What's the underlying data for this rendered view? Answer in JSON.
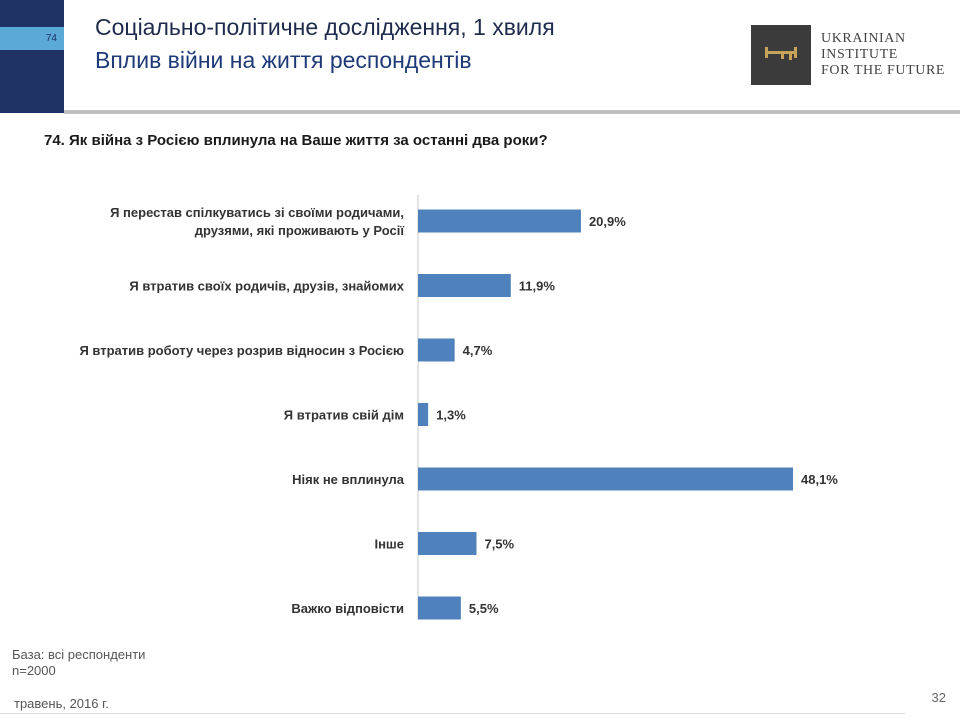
{
  "header": {
    "slide_badge": "74",
    "title": "Соціально-політичне дослідження, 1 хвиля",
    "subtitle": "Вплив війни на життя респондентів"
  },
  "logo": {
    "lines": [
      "Ukrainian",
      "Institute",
      "for the Future"
    ],
    "icon": "key-icon"
  },
  "question": "74. Як війна з Росією вплинула на Ваше життя за останні два роки?",
  "chart_data": {
    "type": "bar",
    "orientation": "horizontal",
    "categories": [
      [
        "Я перестав спілкуватись зі своїми родичами,",
        "друзями, які проживають у Росії"
      ],
      [
        "Я втратив своїх родичів, друзів, знайомих"
      ],
      [
        "Я втратив роботу через розрив відносин з Росією"
      ],
      [
        "Я втратив свій дім"
      ],
      [
        "Ніяк не вплинула"
      ],
      [
        "Інше"
      ],
      [
        "Важко відповісти"
      ]
    ],
    "values": [
      20.9,
      11.9,
      4.7,
      1.3,
      48.1,
      7.5,
      5.5
    ],
    "value_labels": [
      "20,9%",
      "11,9%",
      "4,7%",
      "1,3%",
      "48,1%",
      "7,5%",
      "5,5%"
    ],
    "unit": "%",
    "bar_color": "#4f81bd",
    "grid": false,
    "legend": "none"
  },
  "footer": {
    "base_line1": "База: всі респонденти",
    "base_line2": "n=2000",
    "date": "травень, 2016 г.",
    "page_number": "32"
  }
}
